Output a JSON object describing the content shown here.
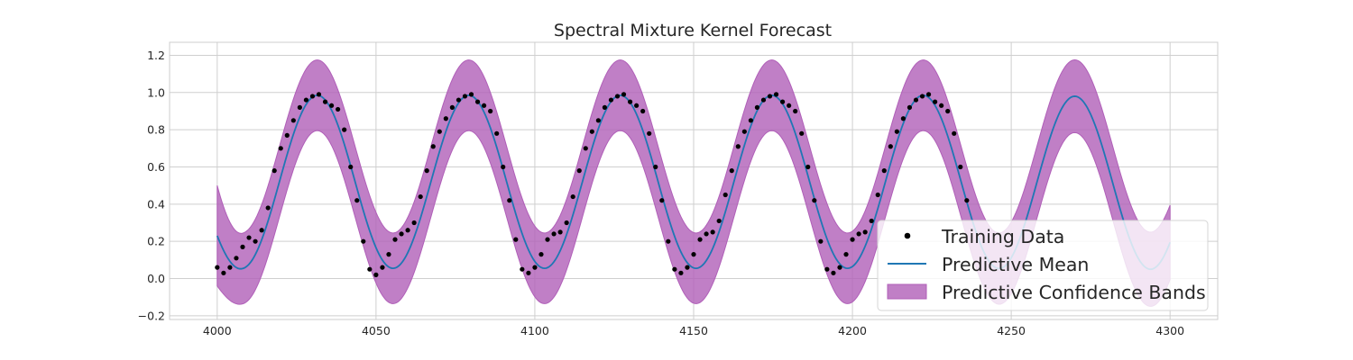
{
  "chart_data": {
    "type": "line",
    "title": "Spectral Mixture Kernel Forecast",
    "xlabel": "",
    "ylabel": "",
    "xlim": [
      3985,
      4315
    ],
    "ylim": [
      -0.22,
      1.27
    ],
    "xticks": [
      4000,
      4050,
      4100,
      4150,
      4200,
      4250,
      4300
    ],
    "yticks": [
      -0.2,
      0.0,
      0.2,
      0.4,
      0.6,
      0.8,
      1.0,
      1.2
    ],
    "ytick_labels": [
      "−0.2",
      "0.0",
      "0.2",
      "0.4",
      "0.6",
      "0.8",
      "1.0",
      "1.2"
    ],
    "grid": true,
    "legend_position": "lower-right",
    "series": [
      {
        "name": "Training Data",
        "kind": "scatter",
        "color": "#000000",
        "x": [
          4000,
          4002,
          4004,
          4006,
          4008,
          4010,
          4012,
          4014,
          4016,
          4018,
          4020,
          4022,
          4024,
          4026,
          4028,
          4030,
          4032,
          4034,
          4036,
          4038,
          4040,
          4042,
          4044,
          4046,
          4048,
          4050,
          4052,
          4054,
          4056,
          4058,
          4060,
          4062,
          4064,
          4066,
          4068,
          4070,
          4072,
          4074,
          4076,
          4078,
          4080,
          4082,
          4084,
          4086,
          4088,
          4090,
          4092,
          4094,
          4096,
          4098,
          4100,
          4102,
          4104,
          4106,
          4108,
          4110,
          4112,
          4114,
          4116,
          4118,
          4120,
          4122,
          4124,
          4126,
          4128,
          4130,
          4132,
          4134,
          4136,
          4138,
          4140,
          4142,
          4144,
          4146,
          4148,
          4150,
          4152,
          4154,
          4156,
          4158,
          4160,
          4162,
          4164,
          4166,
          4168,
          4170,
          4172,
          4174,
          4176,
          4178,
          4180,
          4182,
          4184,
          4186,
          4188,
          4190,
          4192,
          4194,
          4196,
          4198,
          4200,
          4202,
          4204,
          4206,
          4208,
          4210,
          4212,
          4214,
          4216,
          4218,
          4220,
          4222,
          4224,
          4226,
          4228,
          4230,
          4232,
          4234,
          4236
        ],
        "y": [
          0.06,
          0.03,
          0.06,
          0.11,
          0.17,
          0.22,
          0.2,
          0.26,
          0.38,
          0.58,
          0.7,
          0.77,
          0.85,
          0.92,
          0.96,
          0.98,
          0.99,
          0.95,
          0.93,
          0.91,
          0.8,
          0.6,
          0.42,
          0.2,
          0.05,
          0.02,
          0.06,
          0.13,
          0.21,
          0.24,
          0.26,
          0.3,
          0.44,
          0.58,
          0.71,
          0.79,
          0.86,
          0.92,
          0.96,
          0.98,
          0.99,
          0.95,
          0.93,
          0.9,
          0.78,
          0.6,
          0.42,
          0.21,
          0.05,
          0.03,
          0.06,
          0.13,
          0.21,
          0.24,
          0.25,
          0.3,
          0.44,
          0.58,
          0.7,
          0.79,
          0.85,
          0.92,
          0.96,
          0.98,
          0.99,
          0.95,
          0.93,
          0.9,
          0.78,
          0.6,
          0.42,
          0.2,
          0.05,
          0.03,
          0.06,
          0.13,
          0.21,
          0.24,
          0.25,
          0.31,
          0.45,
          0.58,
          0.71,
          0.79,
          0.85,
          0.92,
          0.96,
          0.98,
          0.99,
          0.95,
          0.93,
          0.9,
          0.78,
          0.6,
          0.42,
          0.2,
          0.05,
          0.03,
          0.06,
          0.13,
          0.21,
          0.24,
          0.25,
          0.31,
          0.45,
          0.58,
          0.71,
          0.79,
          0.86,
          0.92,
          0.96,
          0.98,
          0.99,
          0.95,
          0.93,
          0.9,
          0.78,
          0.6,
          0.42
        ]
      },
      {
        "name": "Predictive Mean",
        "kind": "line",
        "color": "#1f77b4",
        "params": {
          "center": 0.52,
          "amplitude": 0.465,
          "period": 47.7,
          "peak_x": 4031.5,
          "last_peak_y": 0.98,
          "start_y": 0.23
        }
      },
      {
        "name": "Predictive Confidence Bands",
        "kind": "band",
        "color": "#b05fb8",
        "params": {
          "half_width": 0.19,
          "end_half_width": 0.2
        }
      }
    ]
  }
}
